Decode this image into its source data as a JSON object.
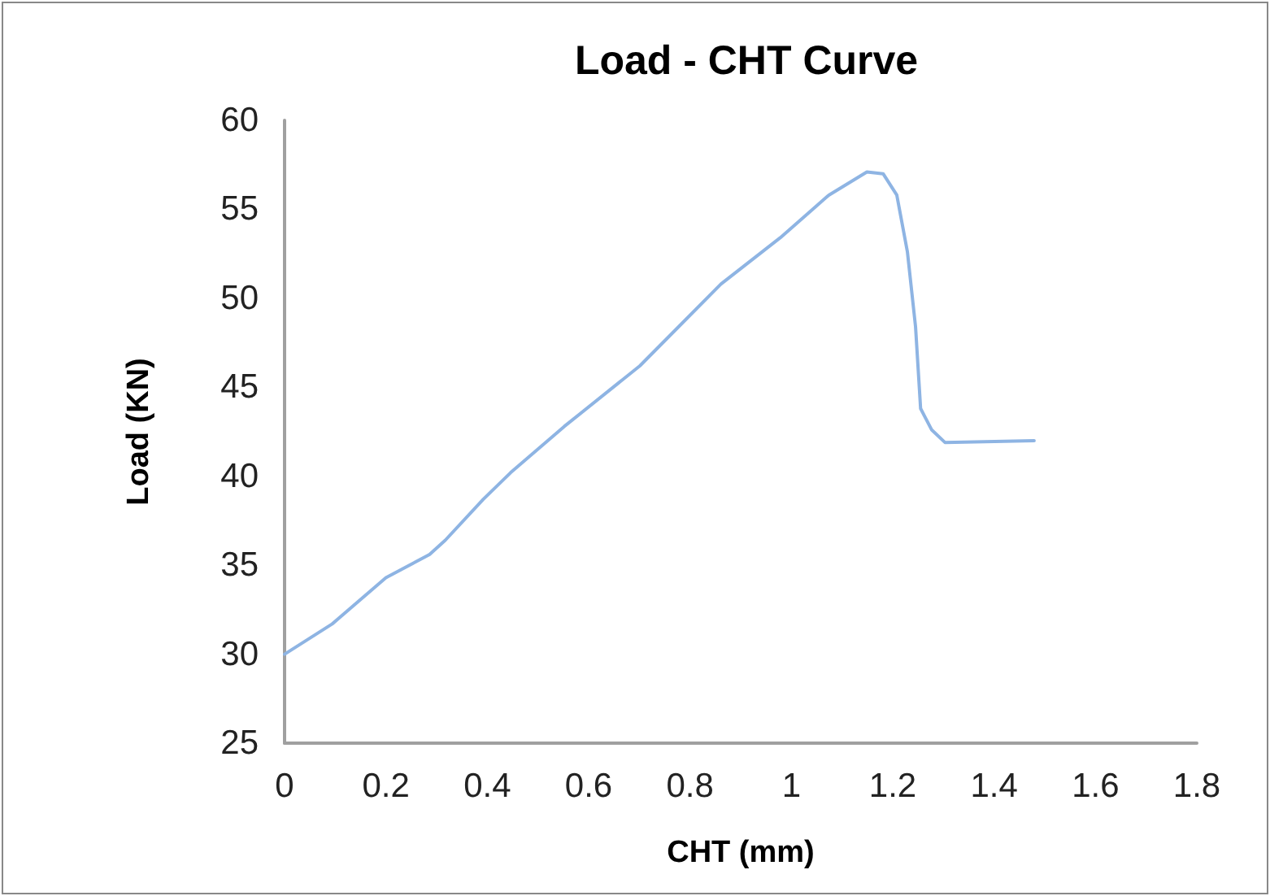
{
  "chart_data": {
    "type": "line",
    "title": "Load - CHT Curve",
    "xlabel": "CHT (mm)",
    "ylabel": "Load (KN)",
    "x": [
      0,
      0.094,
      0.2,
      0.286,
      0.317,
      0.392,
      0.446,
      0.552,
      0.701,
      0.861,
      0.978,
      1.074,
      1.149,
      1.181,
      1.208,
      1.229,
      1.245,
      1.255,
      1.277,
      1.303,
      1.479
    ],
    "series": [
      {
        "color": "#8eb4e3",
        "values": [
          30,
          31.7,
          34.3,
          35.6,
          36.4,
          38.7,
          40.2,
          42.8,
          46.2,
          50.8,
          53.4,
          55.8,
          57.1,
          57.0,
          55.8,
          52.6,
          48.4,
          43.8,
          42.6,
          41.9,
          42.0
        ]
      }
    ],
    "xlim": [
      0,
      1.8
    ],
    "xticks": [
      0,
      0.2,
      0.4,
      0.6,
      0.8,
      1,
      1.2,
      1.4,
      1.6,
      1.8
    ],
    "ylim": [
      25,
      60
    ],
    "yticks": [
      25,
      30,
      35,
      40,
      45,
      50,
      55,
      60
    ],
    "grid": false,
    "marker": "none",
    "line_style": "solid"
  }
}
